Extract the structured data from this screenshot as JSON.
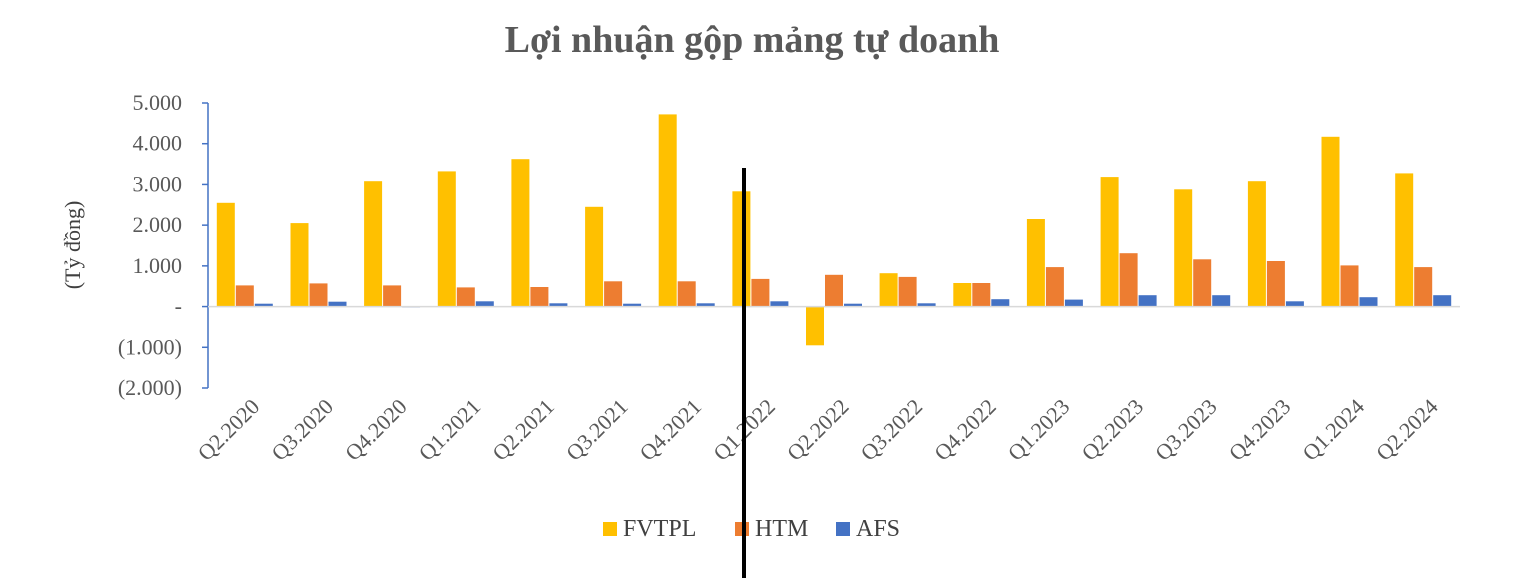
{
  "chart_data": {
    "type": "bar",
    "title": "Lợi nhuận gộp mảng tự doanh",
    "xlabel": "",
    "ylabel": "(Tỷ đồng)",
    "ylim": [
      -2000,
      5000
    ],
    "yticks": [
      5000,
      4000,
      3000,
      2000,
      1000,
      0,
      -1000,
      -2000
    ],
    "ytick_labels": [
      "5.000",
      "4.000",
      "3.000",
      "2.000",
      "1.000",
      "-",
      "(1.000)",
      "(2.000)"
    ],
    "categories": [
      "Q2.2020",
      "Q3.2020",
      "Q4.2020",
      "Q1.2021",
      "Q2.2021",
      "Q3.2021",
      "Q4.2021",
      "Q1.2022",
      "Q2.2022",
      "Q3.2022",
      "Q4.2022",
      "Q1.2023",
      "Q2.2023",
      "Q3.2023",
      "Q4.2023",
      "Q1.2024",
      "Q2.2024"
    ],
    "series": [
      {
        "name": "FVTPL",
        "color": "#FFC000",
        "values": [
          2550,
          2050,
          3080,
          3320,
          3620,
          2450,
          4720,
          2830,
          -950,
          820,
          580,
          2150,
          3180,
          2880,
          3080,
          4170,
          3270
        ]
      },
      {
        "name": "HTM",
        "color": "#ED7D31",
        "values": [
          520,
          570,
          520,
          470,
          480,
          620,
          620,
          680,
          780,
          730,
          580,
          970,
          1310,
          1160,
          1120,
          1010,
          970
        ]
      },
      {
        "name": "AFS",
        "color": "#4472C4",
        "values": [
          70,
          120,
          -20,
          130,
          80,
          70,
          80,
          130,
          70,
          80,
          180,
          170,
          280,
          280,
          130,
          230,
          280
        ]
      }
    ],
    "legend_position": "bottom",
    "grid": false
  }
}
